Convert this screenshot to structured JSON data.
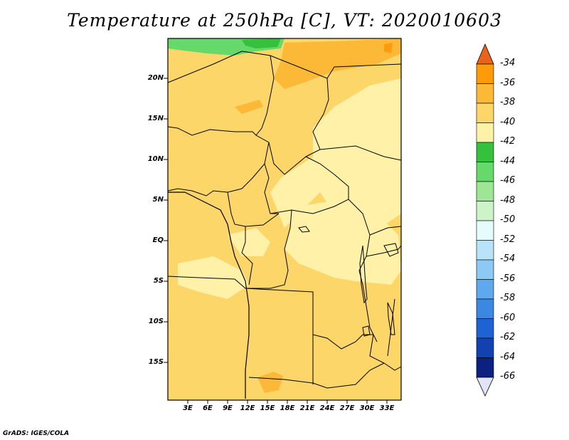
{
  "title": "Temperature at 250hPa [C], VT: 2020010603",
  "credit": "GrADS: IGES/COLA",
  "lat_labels": [
    "20N",
    "15N",
    "10N",
    "5N",
    "EQ",
    "5S",
    "10S",
    "15S"
  ],
  "lon_labels": [
    "3E",
    "6E",
    "9E",
    "12E",
    "15E",
    "18E",
    "21E",
    "24E",
    "27E",
    "30E",
    "33E"
  ],
  "colorbar": {
    "labels": [
      "-34",
      "-36",
      "-38",
      "-40",
      "-42",
      "-44",
      "-46",
      "-48",
      "-50",
      "-52",
      "-54",
      "-56",
      "-58",
      "-60",
      "-62",
      "-64",
      "-66"
    ],
    "colors": [
      "#ff5a14",
      "#ff9a0a",
      "#fbb937",
      "#fdd66a",
      "#fff2a8",
      "#35c13b",
      "#66d96b",
      "#9ee695",
      "#cdf4c8",
      "#e6fbfc",
      "#b9e3f9",
      "#8dc9f5",
      "#5ea9ee",
      "#3a88e4",
      "#1f63d2",
      "#1441b0",
      "#0b2080"
    ],
    "top_color": "#e8641a",
    "bottom_color": "#e4e4f8"
  },
  "map": {
    "lon_range": [
      0,
      35
    ],
    "lat_range": [
      -20,
      24.5
    ],
    "base_color": "#fdd66a"
  }
}
